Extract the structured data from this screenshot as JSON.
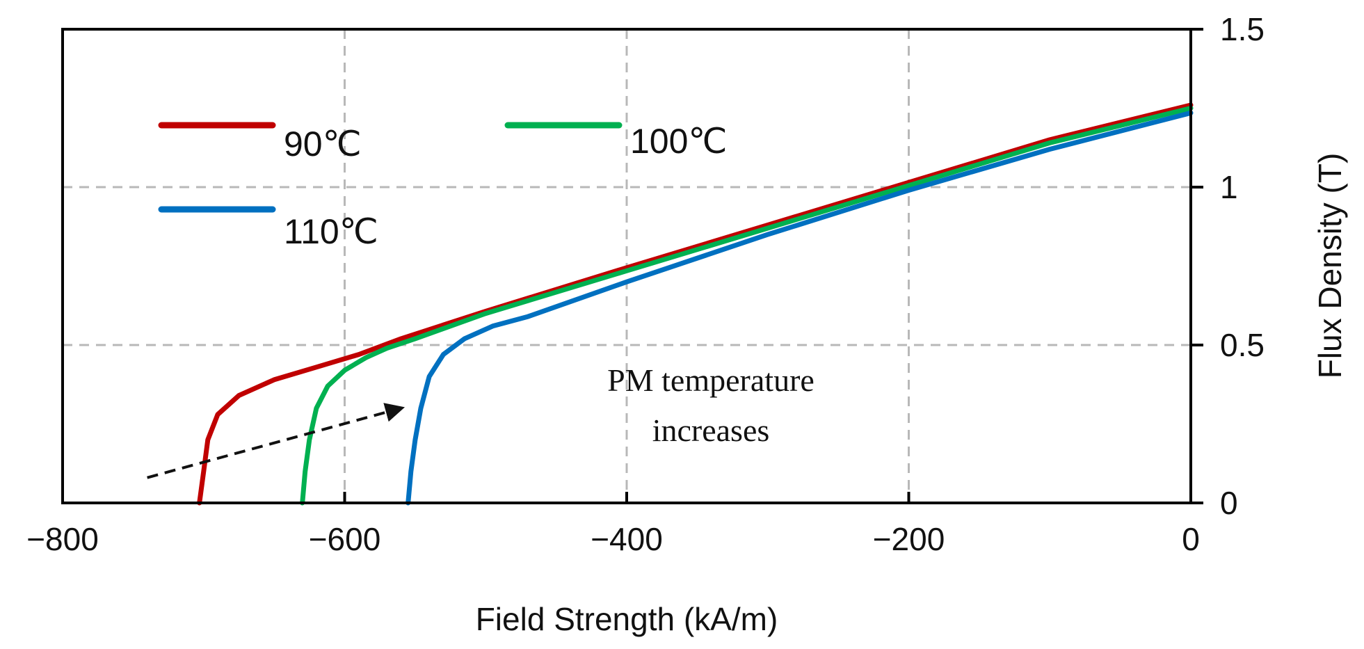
{
  "chart_data": {
    "type": "line",
    "title": "",
    "xlabel": "Field Strength (kA/m)",
    "ylabel": "Flux Density (T)",
    "xlim": [
      -800,
      0
    ],
    "ylim": [
      0,
      1.5
    ],
    "grid": true,
    "y_axis_side": "right",
    "x_ticks": [
      {
        "value": -800,
        "label": "−800"
      },
      {
        "value": -600,
        "label": "−600"
      },
      {
        "value": -400,
        "label": "−400"
      },
      {
        "value": -200,
        "label": "−200"
      },
      {
        "value": 0,
        "label": "0"
      }
    ],
    "y_ticks": [
      {
        "value": 0,
        "label": "0"
      },
      {
        "value": 0.5,
        "label": "0.5"
      },
      {
        "value": 1,
        "label": "1"
      },
      {
        "value": 1.5,
        "label": "1.5"
      }
    ],
    "legend_position": "top-left",
    "series": [
      {
        "name": "90℃",
        "color": "#c00000",
        "points": [
          [
            -703,
            0
          ],
          [
            -700,
            0.1
          ],
          [
            -697,
            0.2
          ],
          [
            -690,
            0.28
          ],
          [
            -675,
            0.34
          ],
          [
            -650,
            0.39
          ],
          [
            -620,
            0.43
          ],
          [
            -590,
            0.47
          ],
          [
            -560,
            0.52
          ],
          [
            -500,
            0.607
          ],
          [
            -400,
            0.745
          ],
          [
            -300,
            0.88
          ],
          [
            -200,
            1.015
          ],
          [
            -100,
            1.15
          ],
          [
            0,
            1.26
          ]
        ]
      },
      {
        "name": "100℃",
        "color": "#00b050",
        "points": [
          [
            -630,
            0
          ],
          [
            -628,
            0.1
          ],
          [
            -625,
            0.2
          ],
          [
            -620,
            0.3
          ],
          [
            -612,
            0.37
          ],
          [
            -600,
            0.42
          ],
          [
            -585,
            0.46
          ],
          [
            -570,
            0.49
          ],
          [
            -550,
            0.52
          ],
          [
            -500,
            0.6
          ],
          [
            -400,
            0.735
          ],
          [
            -300,
            0.87
          ],
          [
            -200,
            1.005
          ],
          [
            -100,
            1.14
          ],
          [
            0,
            1.25
          ]
        ]
      },
      {
        "name": "110℃",
        "color": "#0070c0",
        "points": [
          [
            -555,
            0
          ],
          [
            -553,
            0.1
          ],
          [
            -550,
            0.2
          ],
          [
            -546,
            0.3
          ],
          [
            -540,
            0.4
          ],
          [
            -530,
            0.47
          ],
          [
            -515,
            0.52
          ],
          [
            -495,
            0.56
          ],
          [
            -470,
            0.59
          ],
          [
            -400,
            0.7
          ],
          [
            -300,
            0.85
          ],
          [
            -200,
            0.99
          ],
          [
            -100,
            1.12
          ],
          [
            0,
            1.235
          ]
        ]
      }
    ],
    "annotations": [
      {
        "text_lines": [
          "PM temperature",
          "increases"
        ],
        "arrow_from": [
          -740,
          0.08
        ],
        "arrow_to": [
          -560,
          0.3
        ],
        "style": "dashed-arrow"
      }
    ]
  }
}
